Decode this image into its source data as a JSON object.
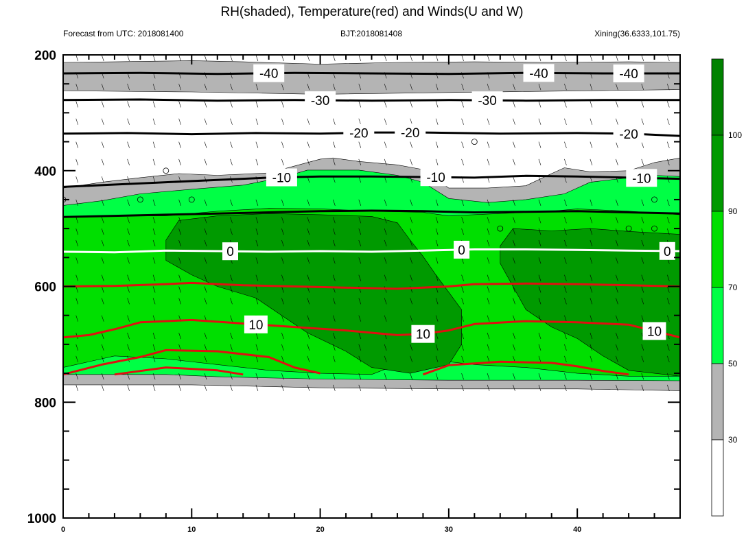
{
  "colors": {
    "rh_30_50": "#b4b4b4",
    "rh_50_70": "#00ff45",
    "rh_70_90": "#00df00",
    "rh_90_100": "#009a00",
    "rh_100": "#008200",
    "temperature_line": "#e01010",
    "zero_line": "#ffffff",
    "isotherm_line": "#000000",
    "axis": "#000000"
  },
  "header": {
    "title": "RH(shaded), Temperature(red) and Winds(U and W)",
    "left": "Forecast from UTC: 2018081400",
    "center": "BJT:2018081408",
    "right": "Xining(36.6333,101.75)"
  },
  "chart_data": {
    "type": "contour",
    "title": "RH(shaded), Temperature(red) and Winds(U and W)",
    "x": {
      "range": [
        0,
        48
      ],
      "ticks": [
        0,
        10,
        20,
        30,
        40
      ],
      "tick_labels": [
        "0",
        "10",
        "20",
        "30",
        "40"
      ]
    },
    "y": {
      "range": [
        200,
        1000
      ],
      "inverted": true,
      "ticks": [
        200,
        400,
        600,
        800,
        1000
      ],
      "tick_labels": [
        "200",
        "400",
        "600",
        "800",
        "1000"
      ]
    },
    "grid": false,
    "colorbar": {
      "placement": "right",
      "levels": [
        "30",
        "50",
        "70",
        "90",
        "100"
      ],
      "level_values": [
        30,
        50,
        70,
        90,
        100
      ],
      "bands": [
        "#ffffff",
        "#b4b4b4",
        "#00ff45",
        "#00df00",
        "#009a00",
        "#008200"
      ]
    },
    "rh_regions": [
      {
        "band": "30-50",
        "polygon": [
          [
            0,
            213
          ],
          [
            4,
            212
          ],
          [
            10,
            210
          ],
          [
            14,
            212
          ],
          [
            20,
            216
          ],
          [
            26,
            213
          ],
          [
            32,
            212
          ],
          [
            38,
            213
          ],
          [
            44,
            212
          ],
          [
            48,
            213
          ],
          [
            48,
            260
          ],
          [
            30,
            265
          ],
          [
            20,
            268
          ],
          [
            10,
            264
          ],
          [
            0,
            262
          ]
        ]
      },
      {
        "band": "30-50",
        "polygon": [
          [
            0,
            430
          ],
          [
            3,
            420
          ],
          [
            6,
            412
          ],
          [
            9,
            405
          ],
          [
            12,
            408
          ],
          [
            16,
            404
          ],
          [
            19,
            386
          ],
          [
            20,
            380
          ],
          [
            21,
            378
          ],
          [
            23,
            384
          ],
          [
            26,
            390
          ],
          [
            28,
            398
          ],
          [
            30,
            430
          ],
          [
            33,
            430
          ],
          [
            36,
            426
          ],
          [
            38,
            405
          ],
          [
            39,
            395
          ],
          [
            41,
            402
          ],
          [
            44,
            400
          ],
          [
            46,
            386
          ],
          [
            48,
            378
          ],
          [
            48,
            780
          ],
          [
            40,
            777
          ],
          [
            30,
            777
          ],
          [
            20,
            775
          ],
          [
            14,
            772
          ],
          [
            10,
            770
          ],
          [
            0,
            770
          ]
        ]
      },
      {
        "band": "50-70",
        "polygon": [
          [
            0,
            460
          ],
          [
            3,
            452
          ],
          [
            6,
            440
          ],
          [
            10,
            432
          ],
          [
            14,
            425
          ],
          [
            17,
            412
          ],
          [
            19,
            399
          ],
          [
            23,
            399
          ],
          [
            26,
            408
          ],
          [
            28,
            420
          ],
          [
            30,
            448
          ],
          [
            33,
            455
          ],
          [
            36,
            450
          ],
          [
            39,
            440
          ],
          [
            41,
            420
          ],
          [
            44,
            412
          ],
          [
            46,
            408
          ],
          [
            48,
            410
          ],
          [
            48,
            763
          ],
          [
            40,
            762
          ],
          [
            30,
            762
          ],
          [
            20,
            760
          ],
          [
            12,
            756
          ],
          [
            8,
            752
          ],
          [
            0,
            752
          ]
        ]
      },
      {
        "band": "70-90",
        "polygon": [
          [
            0,
            480
          ],
          [
            4,
            478
          ],
          [
            8,
            478
          ],
          [
            12,
            470
          ],
          [
            16,
            465
          ],
          [
            20,
            466
          ],
          [
            24,
            470
          ],
          [
            28,
            472
          ],
          [
            30,
            478
          ],
          [
            34,
            474
          ],
          [
            38,
            470
          ],
          [
            40,
            466
          ],
          [
            44,
            470
          ],
          [
            48,
            476
          ],
          [
            48,
            755
          ],
          [
            44,
            755
          ],
          [
            40,
            750
          ],
          [
            36,
            740
          ],
          [
            32,
            735
          ],
          [
            30,
            730
          ],
          [
            26,
            735
          ],
          [
            24,
            752
          ],
          [
            20,
            750
          ],
          [
            16,
            745
          ],
          [
            12,
            735
          ],
          [
            8,
            725
          ],
          [
            4,
            720
          ],
          [
            0,
            740
          ]
        ]
      },
      {
        "band": "90-100",
        "polygon": [
          [
            9,
            486
          ],
          [
            12,
            478
          ],
          [
            16,
            474
          ],
          [
            20,
            476
          ],
          [
            24,
            479
          ],
          [
            26,
            490
          ],
          [
            27,
            520
          ],
          [
            28,
            548
          ],
          [
            29,
            580
          ],
          [
            30,
            610
          ],
          [
            31,
            640
          ],
          [
            31,
            700
          ],
          [
            30,
            735
          ],
          [
            27,
            750
          ],
          [
            24,
            740
          ],
          [
            22,
            712
          ],
          [
            19,
            680
          ],
          [
            17,
            650
          ],
          [
            15,
            620
          ],
          [
            12,
            600
          ],
          [
            10,
            580
          ],
          [
            8,
            555
          ],
          [
            8,
            520
          ]
        ]
      },
      {
        "band": "90-100",
        "polygon": [
          [
            35,
            500
          ],
          [
            38,
            504
          ],
          [
            41,
            500
          ],
          [
            44,
            505
          ],
          [
            48,
            510
          ],
          [
            48,
            755
          ],
          [
            46,
            750
          ],
          [
            44,
            745
          ],
          [
            42,
            720
          ],
          [
            40,
            690
          ],
          [
            38,
            670
          ],
          [
            36,
            640
          ],
          [
            35,
            600
          ],
          [
            34,
            560
          ],
          [
            34,
            530
          ]
        ]
      }
    ],
    "isotherms": [
      {
        "value": -40,
        "label": "-40",
        "color": "black",
        "points": [
          [
            0,
            232
          ],
          [
            6,
            231
          ],
          [
            12,
            233
          ],
          [
            18,
            231
          ],
          [
            24,
            232
          ],
          [
            30,
            233
          ],
          [
            36,
            231
          ],
          [
            42,
            232
          ],
          [
            48,
            232
          ]
        ],
        "label_at": [
          [
            16,
            234
          ],
          [
            37,
            232
          ],
          [
            44,
            233
          ]
        ]
      },
      {
        "value": -30,
        "label": "-30",
        "color": "black",
        "points": [
          [
            0,
            278
          ],
          [
            6,
            277
          ],
          [
            12,
            279
          ],
          [
            18,
            278
          ],
          [
            24,
            279
          ],
          [
            30,
            278
          ],
          [
            36,
            279
          ],
          [
            42,
            278
          ],
          [
            48,
            278
          ]
        ],
        "label_at": [
          [
            20,
            278
          ],
          [
            33,
            278
          ]
        ]
      },
      {
        "value": -20,
        "label": "-20",
        "color": "black",
        "points": [
          [
            0,
            336
          ],
          [
            5,
            335
          ],
          [
            10,
            337
          ],
          [
            15,
            335
          ],
          [
            20,
            336
          ],
          [
            24,
            334
          ],
          [
            28,
            334
          ],
          [
            34,
            336
          ],
          [
            40,
            335
          ],
          [
            44,
            336
          ],
          [
            48,
            340
          ]
        ],
        "label_at": [
          [
            23,
            334
          ],
          [
            27,
            334
          ],
          [
            44,
            336
          ]
        ]
      },
      {
        "value": -10,
        "label": "-10",
        "color": "black",
        "points": [
          [
            0,
            428
          ],
          [
            4,
            424
          ],
          [
            8,
            420
          ],
          [
            12,
            416
          ],
          [
            16,
            412
          ],
          [
            20,
            410
          ],
          [
            24,
            410
          ],
          [
            28,
            411
          ],
          [
            32,
            412
          ],
          [
            36,
            409
          ],
          [
            40,
            410
          ],
          [
            44,
            412
          ],
          [
            48,
            414
          ]
        ],
        "label_at": [
          [
            17,
            411
          ],
          [
            29,
            411
          ],
          [
            45,
            412
          ]
        ]
      },
      {
        "value": -5,
        "label": "",
        "color": "black",
        "points": [
          [
            0,
            480
          ],
          [
            4,
            478
          ],
          [
            8,
            476
          ],
          [
            12,
            474
          ],
          [
            16,
            472
          ],
          [
            20,
            470
          ],
          [
            24,
            469
          ],
          [
            28,
            470
          ],
          [
            32,
            472
          ],
          [
            36,
            471
          ],
          [
            40,
            470
          ],
          [
            44,
            472
          ],
          [
            48,
            474
          ]
        ],
        "label_at": []
      },
      {
        "value": 0,
        "label": "0",
        "color": "white",
        "points": [
          [
            0,
            540
          ],
          [
            4,
            541
          ],
          [
            8,
            538
          ],
          [
            12,
            539
          ],
          [
            16,
            540
          ],
          [
            20,
            539
          ],
          [
            24,
            540
          ],
          [
            28,
            538
          ],
          [
            32,
            536
          ],
          [
            36,
            536
          ],
          [
            40,
            537
          ],
          [
            44,
            538
          ],
          [
            48,
            539
          ]
        ],
        "label_at": [
          [
            13,
            539
          ],
          [
            31,
            537
          ],
          [
            47,
            539
          ]
        ]
      },
      {
        "value": 5,
        "label": "",
        "color": "red",
        "points": [
          [
            0,
            600
          ],
          [
            4,
            599
          ],
          [
            8,
            596
          ],
          [
            10,
            594
          ],
          [
            14,
            598
          ],
          [
            18,
            600
          ],
          [
            22,
            602
          ],
          [
            26,
            604
          ],
          [
            30,
            600
          ],
          [
            32,
            596
          ],
          [
            36,
            595
          ],
          [
            40,
            596
          ],
          [
            44,
            598
          ],
          [
            48,
            600
          ]
        ],
        "label_at": []
      },
      {
        "value": 10,
        "label": "10",
        "color": "red",
        "points": [
          [
            0,
            688
          ],
          [
            2,
            684
          ],
          [
            4,
            674
          ],
          [
            6,
            662
          ],
          [
            10,
            658
          ],
          [
            14,
            664
          ],
          [
            18,
            670
          ],
          [
            22,
            676
          ],
          [
            26,
            684
          ],
          [
            28,
            682
          ],
          [
            30,
            676
          ],
          [
            32,
            665
          ],
          [
            36,
            660
          ],
          [
            40,
            662
          ],
          [
            44,
            666
          ],
          [
            48,
            688
          ]
        ],
        "label_at": [
          [
            15,
            667
          ],
          [
            28,
            683
          ],
          [
            46,
            684
          ]
        ]
      },
      {
        "value": 12,
        "label": "",
        "color": "red",
        "points": [
          [
            0,
            752
          ],
          [
            3,
            735
          ],
          [
            6,
            722
          ],
          [
            8,
            710
          ],
          [
            12,
            712
          ],
          [
            16,
            722
          ],
          [
            18,
            740
          ],
          [
            20,
            750
          ]
        ],
        "label_at": []
      },
      {
        "value": 15,
        "label": "",
        "color": "red",
        "points": [
          [
            4,
            752
          ],
          [
            6,
            746
          ],
          [
            8,
            740
          ],
          [
            12,
            745
          ],
          [
            14,
            752
          ]
        ],
        "label_at": []
      },
      {
        "value": 12,
        "label": "",
        "color": "red",
        "points": [
          [
            28,
            752
          ],
          [
            30,
            736
          ],
          [
            34,
            730
          ],
          [
            38,
            732
          ],
          [
            40,
            738
          ],
          [
            42,
            746
          ],
          [
            44,
            752
          ]
        ],
        "label_at": []
      }
    ],
    "wind": {
      "levels": [
        200,
        230,
        250,
        280,
        310,
        350,
        380,
        410,
        450,
        480,
        500,
        520,
        550,
        580,
        600,
        620,
        650,
        680,
        700,
        720,
        750,
        770
      ],
      "times_step": 2,
      "barb": "half",
      "calm_markers": [
        [
          8,
          400
        ],
        [
          6,
          450
        ],
        [
          10,
          450
        ],
        [
          0,
          450
        ],
        [
          32,
          350
        ],
        [
          34,
          500
        ],
        [
          44,
          500
        ],
        [
          46,
          500
        ],
        [
          46,
          450
        ]
      ]
    }
  }
}
